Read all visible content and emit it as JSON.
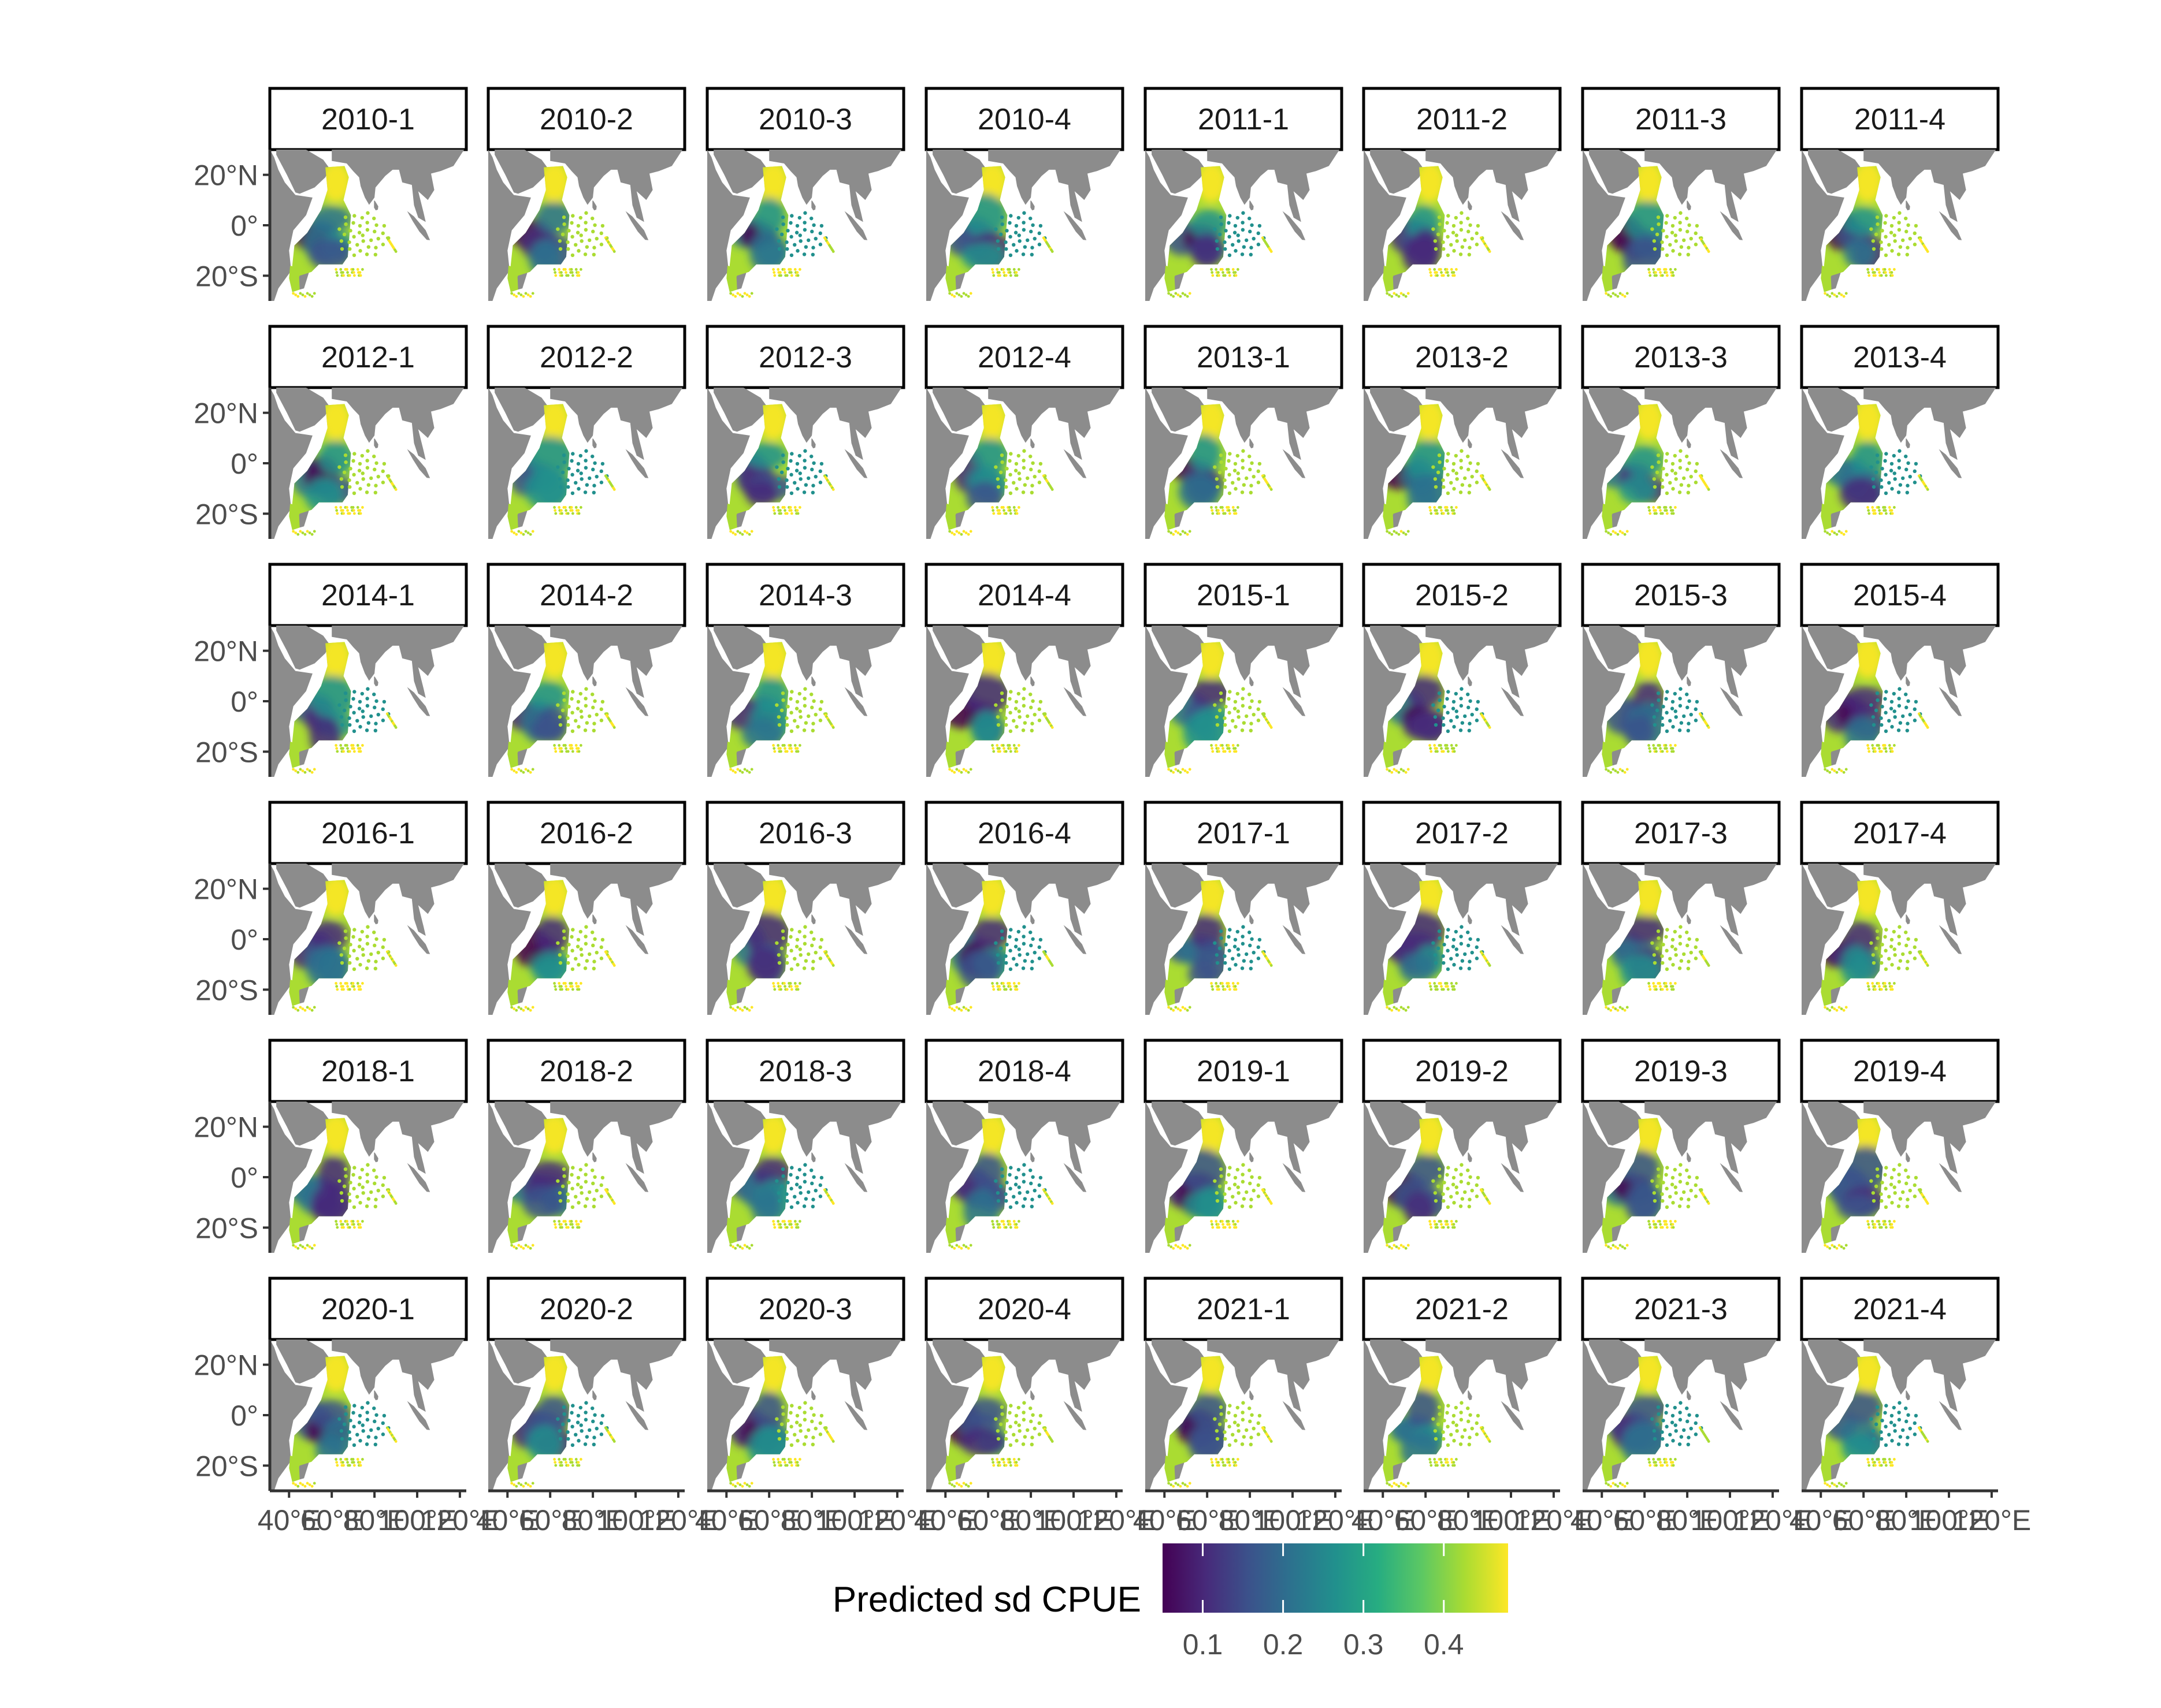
{
  "facets": [
    "2010-1",
    "2010-2",
    "2010-3",
    "2010-4",
    "2011-1",
    "2011-2",
    "2011-3",
    "2011-4",
    "2012-1",
    "2012-2",
    "2012-3",
    "2012-4",
    "2013-1",
    "2013-2",
    "2013-3",
    "2013-4",
    "2014-1",
    "2014-2",
    "2014-3",
    "2014-4",
    "2015-1",
    "2015-2",
    "2015-3",
    "2015-4",
    "2016-1",
    "2016-2",
    "2016-3",
    "2016-4",
    "2017-1",
    "2017-2",
    "2017-3",
    "2017-4",
    "2018-1",
    "2018-2",
    "2018-3",
    "2018-4",
    "2019-1",
    "2019-2",
    "2019-3",
    "2019-4",
    "2020-1",
    "2020-2",
    "2020-3",
    "2020-4",
    "2021-1",
    "2021-2",
    "2021-3",
    "2021-4"
  ],
  "axes": {
    "y_ticks": [
      {
        "value": 20,
        "label": "20°N"
      },
      {
        "value": 0,
        "label": "0°"
      },
      {
        "value": -20,
        "label": "20°S"
      }
    ],
    "x_ticks": [
      {
        "value": 40,
        "label": "40°E"
      },
      {
        "value": 60,
        "label": "60°E"
      },
      {
        "value": 80,
        "label": "80°E"
      },
      {
        "value": 100,
        "label": "100°E"
      },
      {
        "value": 120,
        "label": "120°E"
      }
    ],
    "xlim": [
      31,
      123
    ],
    "ylim": [
      -30,
      30
    ]
  },
  "legend": {
    "title": "Predicted sd CPUE",
    "ticks": [
      {
        "value": 0.1,
        "label": "0.1"
      },
      {
        "value": 0.2,
        "label": "0.2"
      },
      {
        "value": 0.3,
        "label": "0.3"
      },
      {
        "value": 0.4,
        "label": "0.4"
      }
    ],
    "range": [
      0.05,
      0.48
    ],
    "colors": [
      "#440154",
      "#472a7a",
      "#3b528b",
      "#2c728e",
      "#21908d",
      "#27ad81",
      "#5cc863",
      "#aadc32",
      "#fde725"
    ]
  },
  "colors": {
    "land": "#8c8c8c",
    "strip_border": "#000000",
    "axis_text": "#4d4d4d"
  }
}
